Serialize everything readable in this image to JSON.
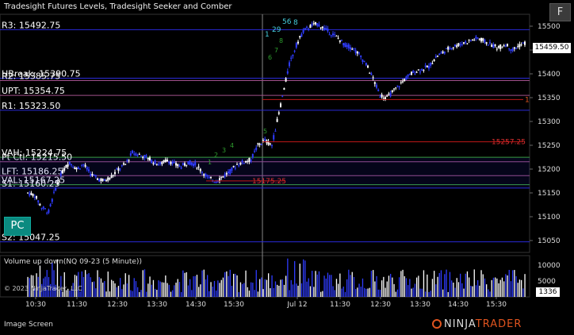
{
  "title": "Tradesight Futures Levels, Tradesight Seeker and Comber",
  "volume_title": "Volume up down(NQ 09-23 (5 Minute))",
  "copyright": "© 2023 NinjaTrader, LLC",
  "image_screen": "Image Screen",
  "pc_label": "PC",
  "f_label": "F",
  "last_price": "15459.50",
  "last_volume": "1336",
  "logo": {
    "left": "NINJA",
    "right": "TRADER"
  },
  "colors": {
    "up": "#ffffff",
    "down": "#2f3cff",
    "level": "#2222cc",
    "pink": "#a0508a",
    "red": "#c01818",
    "green": "#3aa63a",
    "cyan": "#46d0e0"
  },
  "levels": [
    {
      "label": "R3: 15492.75",
      "price": 15492.75,
      "color": "#2a2ad8"
    },
    {
      "label": "HBreak: 15390.75",
      "price": 15390.75,
      "color": "#2a2ad8"
    },
    {
      "label": "R2: 15385.75",
      "price": 15385.75,
      "color": "#a0508a"
    },
    {
      "label": "UPT: 15354.75",
      "price": 15354.75,
      "color": "#a0508a"
    },
    {
      "label": "R1: 15323.50",
      "price": 15323.5,
      "color": "#2a2ad8"
    },
    {
      "label": "VAH: 15224.75",
      "price": 15224.75,
      "color": "#3aa63a"
    },
    {
      "label": "Pt Ctl: 15215.50",
      "price": 15215.5,
      "color": "#a0508a"
    },
    {
      "label": "LFT: 15186.25",
      "price": 15186.25,
      "color": "#a0508a"
    },
    {
      "label": "VAL: 15167.25",
      "price": 15167.25,
      "color": "#3aa63a"
    },
    {
      "label": "S1: 15160.25",
      "price": 15160.25,
      "color": "#2a2ad8"
    },
    {
      "label": "S2: 15047.25",
      "price": 15047.25,
      "color": "#2a2ad8"
    }
  ],
  "price_axis": [
    15500,
    15450,
    15400,
    15350,
    15300,
    15250,
    15200,
    15150,
    15100,
    15050
  ],
  "volume_axis": [
    10000,
    5000
  ],
  "time_axis": [
    "10:30",
    "11:30",
    "12:30",
    "13:30",
    "14:30",
    "15:30",
    "Jul 12",
    "11:30",
    "12:30",
    "13:30",
    "14:30",
    "15:30"
  ],
  "annotations": [
    {
      "text": "15257.25",
      "price": 15257.25,
      "color": "#e03030"
    },
    {
      "text": "15175.25",
      "price": 15175.25,
      "color": "#e03030"
    },
    {
      "text": "1",
      "price": 15346,
      "color": "#e0541f"
    },
    {
      "text": "56",
      "price": 15510,
      "color": "#46d0e0"
    },
    {
      "text": "8",
      "price": 15508,
      "color": "#46d0e0"
    },
    {
      "text": "29",
      "price": 15493,
      "color": "#46d0e0"
    },
    {
      "text": "1",
      "price": 15483,
      "color": "#46d0e0"
    }
  ],
  "chart_data": {
    "type": "bar",
    "instrument": "NQ 09-23",
    "interval": "5 Minute",
    "last": 15459.5,
    "price_ylim": [
      15025,
      15525
    ],
    "volume_ylim": [
      0,
      13000
    ],
    "price_path": [
      [
        0,
        15150
      ],
      [
        4,
        15145
      ],
      [
        8,
        15120
      ],
      [
        12,
        15110
      ],
      [
        16,
        15160
      ],
      [
        20,
        15195
      ],
      [
        24,
        15215
      ],
      [
        28,
        15200
      ],
      [
        32,
        15210
      ],
      [
        36,
        15190
      ],
      [
        40,
        15180
      ],
      [
        44,
        15175
      ],
      [
        48,
        15185
      ],
      [
        52,
        15200
      ],
      [
        56,
        15210
      ],
      [
        60,
        15235
      ],
      [
        64,
        15230
      ],
      [
        68,
        15225
      ],
      [
        72,
        15215
      ],
      [
        76,
        15210
      ],
      [
        80,
        15220
      ],
      [
        84,
        15210
      ],
      [
        88,
        15205
      ],
      [
        92,
        15215
      ],
      [
        96,
        15210
      ],
      [
        100,
        15195
      ],
      [
        104,
        15180
      ],
      [
        108,
        15175
      ],
      [
        112,
        15185
      ],
      [
        116,
        15195
      ],
      [
        120,
        15210
      ],
      [
        124,
        15215
      ],
      [
        128,
        15220
      ],
      [
        132,
        15250
      ],
      [
        136,
        15260
      ],
      [
        140,
        15250
      ],
      [
        150,
        15420
      ],
      [
        154,
        15460
      ],
      [
        158,
        15490
      ],
      [
        162,
        15500
      ],
      [
        166,
        15505
      ],
      [
        170,
        15495
      ],
      [
        174,
        15485
      ],
      [
        178,
        15475
      ],
      [
        182,
        15460
      ],
      [
        186,
        15455
      ],
      [
        190,
        15440
      ],
      [
        194,
        15420
      ],
      [
        198,
        15390
      ],
      [
        202,
        15355
      ],
      [
        206,
        15350
      ],
      [
        210,
        15365
      ],
      [
        214,
        15380
      ],
      [
        218,
        15395
      ],
      [
        222,
        15405
      ],
      [
        226,
        15410
      ],
      [
        230,
        15415
      ],
      [
        234,
        15435
      ],
      [
        238,
        15445
      ],
      [
        242,
        15455
      ],
      [
        246,
        15460
      ],
      [
        250,
        15465
      ],
      [
        254,
        15470
      ],
      [
        258,
        15475
      ],
      [
        262,
        15468
      ],
      [
        266,
        15460
      ],
      [
        270,
        15455
      ],
      [
        274,
        15462
      ],
      [
        278,
        15450
      ],
      [
        282,
        15460
      ],
      [
        286,
        15465
      ]
    ]
  }
}
